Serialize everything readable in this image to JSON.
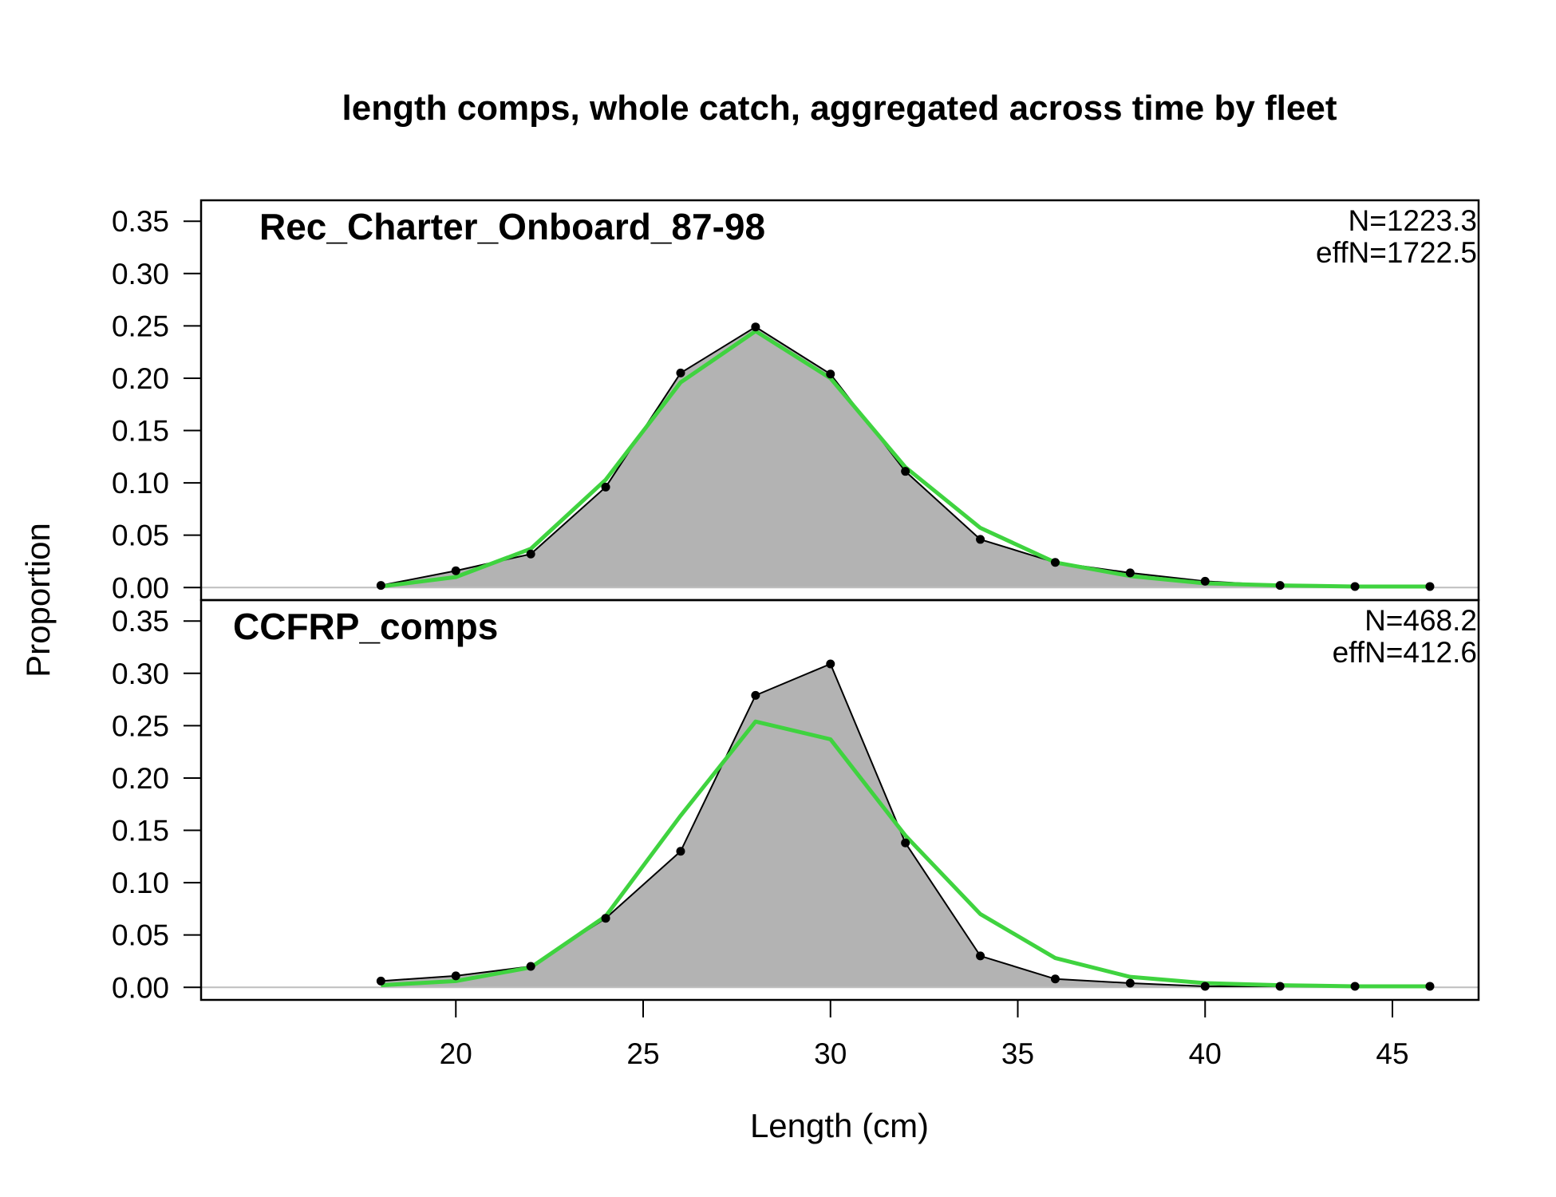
{
  "chart_data": {
    "type": "area",
    "title": "length comps, whole catch, aggregated across time by fleet",
    "xlabel": "Length (cm)",
    "ylabel": "Proportion",
    "xlim": [
      13.2,
      47.3
    ],
    "ylim": [
      -0.012,
      0.37
    ],
    "x_ticks": [
      "20",
      "25",
      "30",
      "35",
      "40",
      "45"
    ],
    "y_ticks": [
      "0.00",
      "0.05",
      "0.10",
      "0.15",
      "0.20",
      "0.25",
      "0.30",
      "0.35"
    ],
    "colors": {
      "observed_fill": "#b3b3b3",
      "observed_line": "#000000",
      "expected_line": "#3fd33f",
      "zero_line": "#bebebe"
    },
    "panels": [
      {
        "name": "Rec_Charter_Onboard_87-98",
        "N_label": "N=1223.3",
        "effN_label": "effN=1722.5",
        "x": [
          18,
          20,
          22,
          24,
          26,
          28,
          30,
          32,
          34,
          36,
          38,
          40,
          42,
          44,
          46
        ],
        "observed": [
          0.002,
          0.016,
          0.032,
          0.096,
          0.205,
          0.249,
          0.204,
          0.111,
          0.046,
          0.024,
          0.014,
          0.006,
          0.002,
          0.001,
          0.001
        ],
        "expected": [
          0.001,
          0.01,
          0.037,
          0.103,
          0.196,
          0.245,
          0.2,
          0.115,
          0.057,
          0.024,
          0.011,
          0.004,
          0.002,
          0.001,
          0.001
        ]
      },
      {
        "name": "CCFRP_comps",
        "N_label": "N=468.2",
        "effN_label": "effN=412.6",
        "x": [
          18,
          20,
          22,
          24,
          26,
          28,
          30,
          32,
          34,
          36,
          38,
          40,
          42,
          44,
          46
        ],
        "observed": [
          0.006,
          0.011,
          0.02,
          0.066,
          0.13,
          0.279,
          0.309,
          0.138,
          0.03,
          0.008,
          0.004,
          0.001,
          0.001,
          0.001,
          0.001
        ],
        "expected": [
          0.002,
          0.006,
          0.019,
          0.068,
          0.164,
          0.254,
          0.237,
          0.145,
          0.07,
          0.028,
          0.01,
          0.004,
          0.002,
          0.001,
          0.001
        ]
      }
    ]
  }
}
